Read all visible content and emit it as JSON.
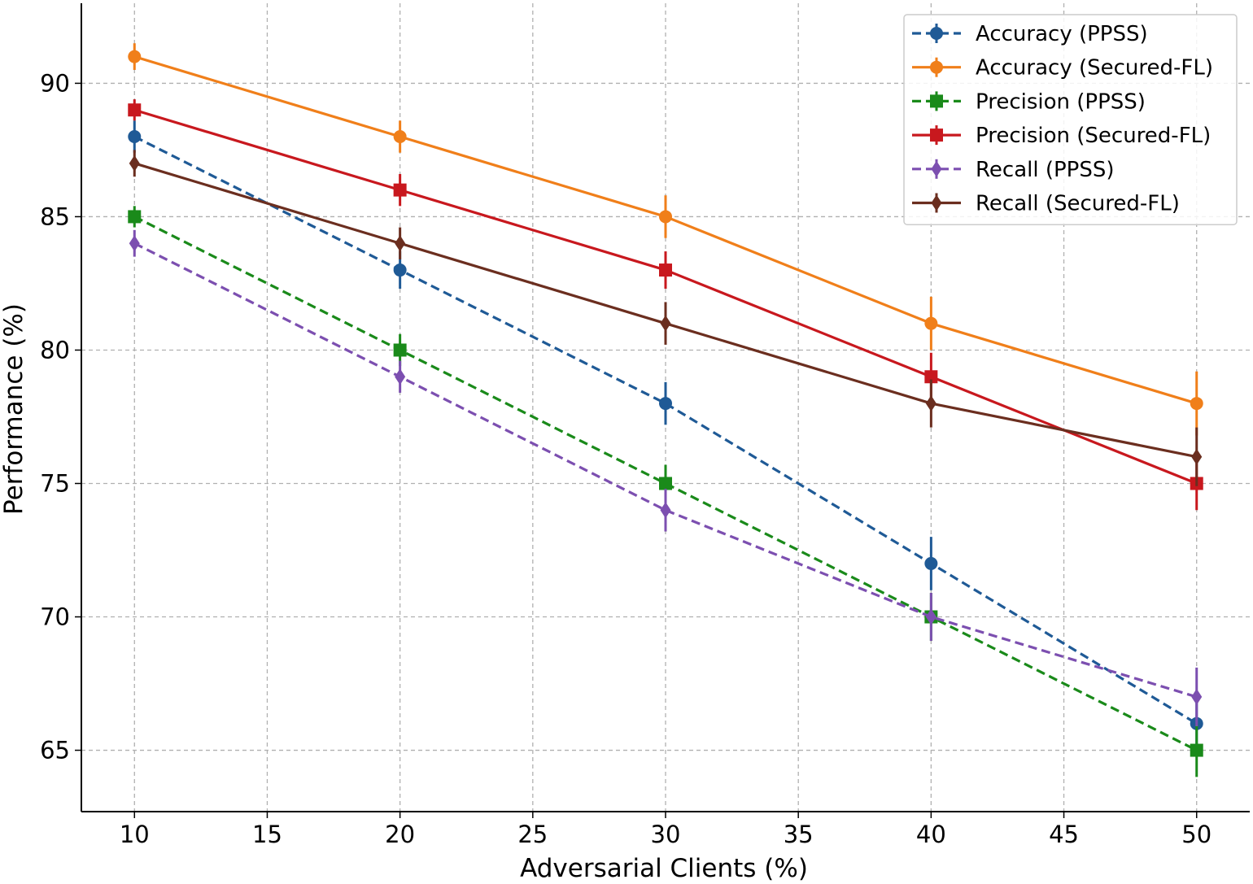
{
  "chart_data": {
    "type": "line",
    "title": "",
    "xlabel": "Adversarial Clients (%)",
    "ylabel": "Performance (%)",
    "x": [
      10,
      20,
      30,
      40,
      50
    ],
    "xlim": [
      8,
      52
    ],
    "ylim": [
      62.7,
      93
    ],
    "xticks": [
      10,
      15,
      20,
      25,
      30,
      35,
      40,
      45,
      50
    ],
    "yticks": [
      65,
      70,
      75,
      80,
      85,
      90
    ],
    "grid": true,
    "legend_position": "top-right",
    "series": [
      {
        "name": "Accuracy (PPSS)",
        "values": [
          88,
          83,
          78,
          72,
          66
        ],
        "errors": [
          0.6,
          0.7,
          0.8,
          1.0,
          1.2
        ],
        "color": "#1f5a96",
        "dash": "dashed",
        "marker": "circle"
      },
      {
        "name": "Accuracy (Secured-FL)",
        "values": [
          91,
          88,
          85,
          81,
          78
        ],
        "errors": [
          0.5,
          0.6,
          0.8,
          1.0,
          1.2
        ],
        "color": "#f07f1a",
        "dash": "solid",
        "marker": "circle"
      },
      {
        "name": "Precision (PPSS)",
        "values": [
          85,
          80,
          75,
          70,
          65
        ],
        "errors": [
          0.4,
          0.6,
          0.7,
          0.9,
          1.0
        ],
        "color": "#1a8a1a",
        "dash": "dashed",
        "marker": "square"
      },
      {
        "name": "Precision (Secured-FL)",
        "values": [
          89,
          86,
          83,
          79,
          75
        ],
        "errors": [
          0.4,
          0.6,
          0.7,
          0.9,
          1.0
        ],
        "color": "#c8181e",
        "dash": "solid",
        "marker": "square"
      },
      {
        "name": "Recall (PPSS)",
        "values": [
          84,
          79,
          74,
          70,
          67
        ],
        "errors": [
          0.5,
          0.6,
          0.8,
          0.9,
          1.1
        ],
        "color": "#7c4fb0",
        "dash": "dashed",
        "marker": "diamond"
      },
      {
        "name": "Recall (Secured-FL)",
        "values": [
          87,
          84,
          81,
          78,
          76
        ],
        "errors": [
          0.5,
          0.6,
          0.8,
          0.9,
          1.1
        ],
        "color": "#6b2e1f",
        "dash": "solid",
        "marker": "diamond"
      }
    ]
  }
}
